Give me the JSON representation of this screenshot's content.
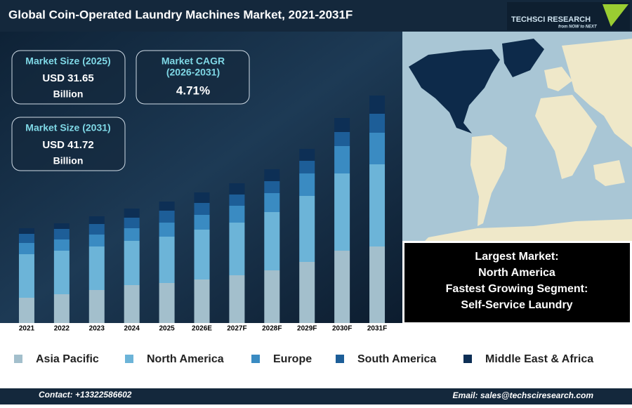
{
  "header": {
    "title": "Global Coin-Operated Laundry Machines Market, 2021-2031F",
    "logo": "TECHSCI RESEARCH",
    "tagline": "from NOW to NEXT"
  },
  "stats": [
    {
      "label": "Market Size (2025)",
      "value": "USD 31.65",
      "unit": "Billion"
    },
    {
      "label": "Market CAGR",
      "label2": "(2026-2031)",
      "value": "4.71%"
    },
    {
      "label": "Market Size (2031)",
      "value": "USD 41.72",
      "unit": "Billion"
    }
  ],
  "highlights": [
    "Largest Market:",
    "North America",
    "Fastest Growing Segment:",
    "Self-Service Laundry"
  ],
  "footer": {
    "contact": "Contact: +13322586602",
    "email": "Email: sales@techsciresearch.com"
  },
  "chart_data": {
    "type": "stacked_bar",
    "categories": [
      "2021",
      "2022",
      "2023",
      "2024",
      "2025",
      "2026E",
      "2027F",
      "2028F",
      "2029F",
      "2030F",
      "2031F"
    ],
    "ylim": [
      0,
      340
    ],
    "series": [
      {
        "name": "Asia Pacific",
        "color": "#a3bfcc",
        "values": [
          36,
          41,
          47,
          54,
          57,
          62,
          68,
          75,
          87,
          103,
          109
        ]
      },
      {
        "name": "North America",
        "color": "#6cb4d8",
        "values": [
          62,
          62,
          62,
          63,
          66,
          71,
          75,
          83,
          94,
          110,
          117
        ]
      },
      {
        "name": "Europe",
        "color": "#3a8bc2",
        "values": [
          16,
          16,
          17,
          18,
          20,
          21,
          24,
          27,
          32,
          39,
          45
        ]
      },
      {
        "name": "South America",
        "color": "#1d5e98",
        "values": [
          13,
          15,
          15,
          15,
          17,
          17,
          16,
          17,
          18,
          20,
          27
        ]
      },
      {
        "name": "Middle East & Africa",
        "color": "#0d2f55",
        "values": [
          8,
          8,
          11,
          13,
          13,
          15,
          16,
          17,
          17,
          20,
          26
        ]
      }
    ]
  }
}
